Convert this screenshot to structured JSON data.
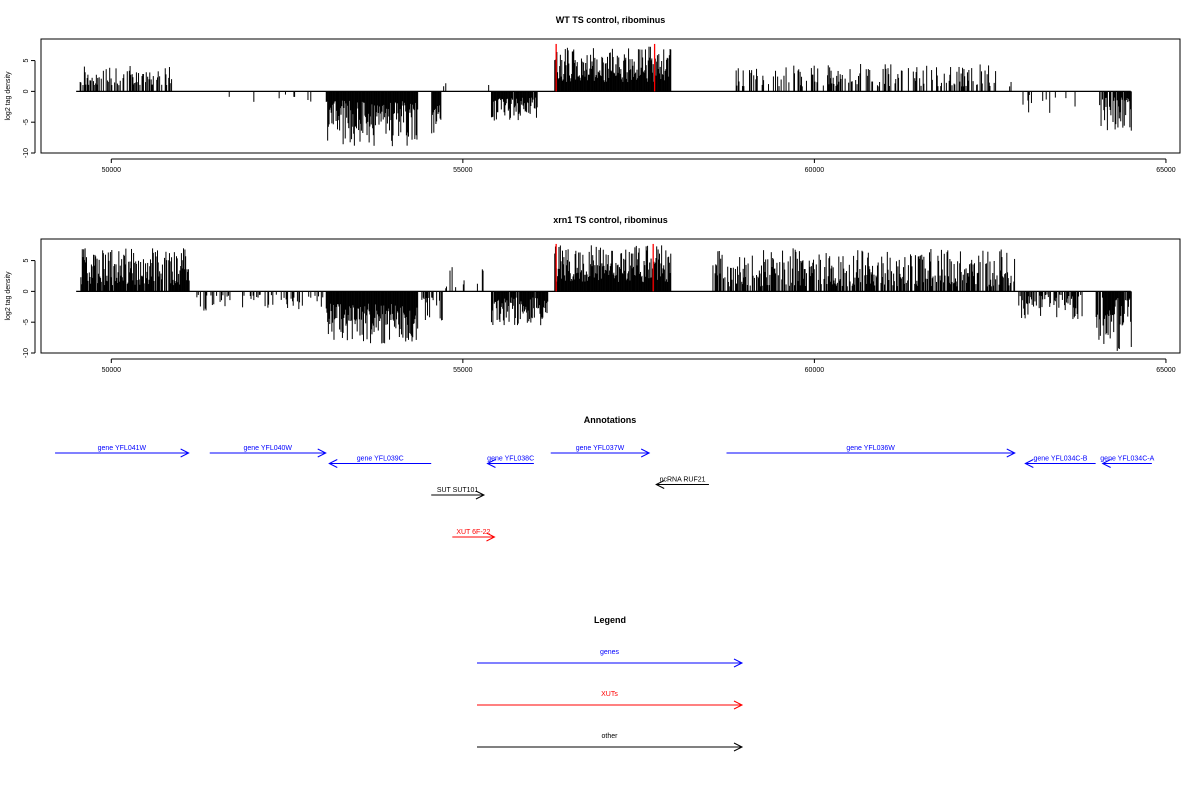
{
  "chart_data": [
    {
      "type": "bar",
      "title": "WT TS control, ribominus",
      "ylabel": "log2 tag density",
      "xlim": [
        49000,
        65200
      ],
      "ylim": [
        -10,
        8.5
      ],
      "xticks": [
        50000,
        55000,
        60000,
        65000
      ],
      "yticks": [
        -10,
        -5,
        0,
        5
      ],
      "grid": false,
      "legend": "none",
      "baseline": {
        "start": 49500,
        "end": 64500,
        "value": 0
      },
      "highlight_color": "#ff0000",
      "highlights": [
        {
          "x": 56320,
          "value": 7.7
        },
        {
          "x": 57720,
          "value": 7.7
        }
      ],
      "regions": [
        {
          "start": 49550,
          "end": 50850,
          "sign": 1,
          "min": 1,
          "max": 4.2,
          "density": 0.55,
          "seed": 11
        },
        {
          "start": 51500,
          "end": 52900,
          "sign": -1,
          "min": 0.5,
          "max": 2.2,
          "density": 0.06,
          "seed": 12
        },
        {
          "start": 53050,
          "end": 54350,
          "sign": -1,
          "min": 1.5,
          "max": 9,
          "density": 1.0,
          "seed": 13
        },
        {
          "start": 54550,
          "end": 54680,
          "sign": -1,
          "min": 2,
          "max": 7,
          "density": 1.0,
          "seed": 14
        },
        {
          "start": 55400,
          "end": 56050,
          "sign": -1,
          "min": 1,
          "max": 4.8,
          "density": 0.9,
          "seed": 15
        },
        {
          "start": 54700,
          "end": 55500,
          "sign": 1,
          "min": 0.5,
          "max": 2.2,
          "density": 0.08,
          "seed": 16
        },
        {
          "start": 56300,
          "end": 57950,
          "sign": 1,
          "min": 1.5,
          "max": 7.3,
          "density": 1.0,
          "seed": 17
        },
        {
          "start": 58300,
          "end": 58700,
          "sign": -1,
          "min": 0.5,
          "max": 1.5,
          "density": 0.05,
          "seed": 18
        },
        {
          "start": 58800,
          "end": 62800,
          "sign": 1,
          "min": 0.8,
          "max": 4.5,
          "density": 0.35,
          "seed": 19
        },
        {
          "start": 62850,
          "end": 63700,
          "sign": -1,
          "min": 0.5,
          "max": 3.5,
          "density": 0.12,
          "seed": 20
        },
        {
          "start": 64050,
          "end": 64500,
          "sign": -1,
          "min": 1,
          "max": 6.5,
          "density": 0.75,
          "seed": 21
        }
      ]
    },
    {
      "type": "bar",
      "title": "xrn1 TS control, ribominus",
      "ylabel": "log2 tag density",
      "xlim": [
        49000,
        65200
      ],
      "ylim": [
        -10,
        8.5
      ],
      "xticks": [
        50000,
        55000,
        60000,
        65000
      ],
      "yticks": [
        -10,
        -5,
        0,
        5
      ],
      "grid": false,
      "legend": "none",
      "baseline": {
        "start": 49500,
        "end": 64500,
        "value": 0
      },
      "highlight_color": "#ff0000",
      "highlights": [
        {
          "x": 56320,
          "value": 7.7
        },
        {
          "x": 57700,
          "value": 7.7
        }
      ],
      "regions": [
        {
          "start": 49550,
          "end": 51100,
          "sign": 1,
          "min": 1,
          "max": 7,
          "density": 0.9,
          "seed": 31
        },
        {
          "start": 51200,
          "end": 53000,
          "sign": -1,
          "min": 0.5,
          "max": 3.2,
          "density": 0.3,
          "seed": 32
        },
        {
          "start": 53050,
          "end": 54350,
          "sign": -1,
          "min": 2,
          "max": 8.5,
          "density": 1.0,
          "seed": 33
        },
        {
          "start": 54400,
          "end": 54700,
          "sign": -1,
          "min": 1,
          "max": 5,
          "density": 0.6,
          "seed": 34
        },
        {
          "start": 54750,
          "end": 55300,
          "sign": 1,
          "min": 0.5,
          "max": 4,
          "density": 0.15,
          "seed": 35
        },
        {
          "start": 55400,
          "end": 56200,
          "sign": -1,
          "min": 1,
          "max": 5.5,
          "density": 0.9,
          "seed": 36
        },
        {
          "start": 56300,
          "end": 57950,
          "sign": 1,
          "min": 1.5,
          "max": 7.5,
          "density": 1.0,
          "seed": 37
        },
        {
          "start": 58100,
          "end": 58400,
          "sign": -1,
          "min": 1,
          "max": 2,
          "density": 0.05,
          "seed": 38
        },
        {
          "start": 58550,
          "end": 62850,
          "sign": 1,
          "min": 0.8,
          "max": 7,
          "density": 0.7,
          "seed": 39
        },
        {
          "start": 62900,
          "end": 63800,
          "sign": -1,
          "min": 0.5,
          "max": 4.5,
          "density": 0.6,
          "seed": 40
        },
        {
          "start": 64000,
          "end": 64500,
          "sign": -1,
          "min": 1,
          "max": 10,
          "density": 0.85,
          "seed": 41
        }
      ]
    },
    {
      "type": "other",
      "title": "Annotations",
      "colors": {
        "gene": "#0000ff",
        "XUT": "#ff0000",
        "other": "#000000"
      },
      "features": [
        {
          "label": "gene YFL041W",
          "kind": "gene",
          "start": 49200,
          "end": 51100,
          "strand": "+",
          "row": 0
        },
        {
          "label": "gene YFL040W",
          "kind": "gene",
          "start": 51400,
          "end": 53050,
          "strand": "+",
          "row": 0
        },
        {
          "label": "gene YFL039C",
          "kind": "gene",
          "start": 53100,
          "end": 54550,
          "strand": "-",
          "row": 1
        },
        {
          "label": "gene YFL038C",
          "kind": "gene",
          "start": 55350,
          "end": 56010,
          "strand": "-",
          "row": 1
        },
        {
          "label": "gene YFL037W",
          "kind": "gene",
          "start": 56250,
          "end": 57650,
          "strand": "+",
          "row": 0
        },
        {
          "label": "gene YFL036W",
          "kind": "gene",
          "start": 58750,
          "end": 62850,
          "strand": "+",
          "row": 0
        },
        {
          "label": "gene YFL034C-B",
          "kind": "gene",
          "start": 63000,
          "end": 64000,
          "strand": "-",
          "row": 1
        },
        {
          "label": "gene YFL034C-A",
          "kind": "gene",
          "start": 64100,
          "end": 64800,
          "strand": "-",
          "row": 1
        },
        {
          "label": "SUT SUT101",
          "kind": "other",
          "start": 54550,
          "end": 55300,
          "strand": "+",
          "row": 4
        },
        {
          "label": "ncRNA RUF21",
          "kind": "other",
          "start": 57750,
          "end": 58500,
          "strand": "-",
          "row": 3
        },
        {
          "label": "XUT 6F-22",
          "kind": "XUT",
          "start": 54850,
          "end": 55450,
          "strand": "+",
          "row": 8
        }
      ]
    },
    {
      "type": "other",
      "title": "Legend",
      "entries": [
        {
          "label": "genes",
          "color": "#0000ff"
        },
        {
          "label": "XUTs",
          "color": "#ff0000"
        },
        {
          "label": "other",
          "color": "#000000"
        }
      ]
    }
  ]
}
